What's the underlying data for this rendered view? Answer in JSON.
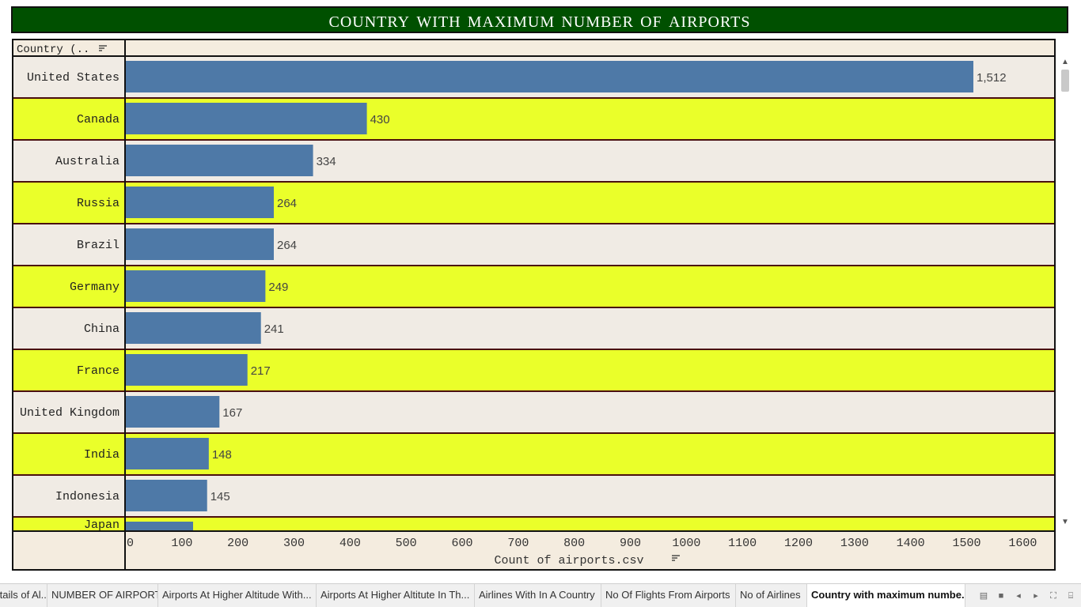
{
  "title": "Country with maximum number of airports",
  "chart_data": {
    "type": "bar",
    "orientation": "horizontal",
    "categories": [
      "United States",
      "Canada",
      "Australia",
      "Russia",
      "Brazil",
      "Germany",
      "China",
      "France",
      "United Kingdom",
      "India",
      "Indonesia",
      "Japan"
    ],
    "values": [
      1512,
      430,
      334,
      264,
      264,
      249,
      241,
      217,
      167,
      148,
      145,
      120
    ],
    "data_labels": [
      "1,512",
      "430",
      "334",
      "264",
      "264",
      "249",
      "241",
      "217",
      "167",
      "148",
      "145",
      ""
    ],
    "row_header": "Country (..",
    "xlabel": "Count of airports.csv",
    "xlim": [
      0,
      1650
    ],
    "xticks": [
      0,
      100,
      200,
      300,
      400,
      500,
      600,
      700,
      800,
      900,
      1000,
      1100,
      1200,
      1300,
      1400,
      1500,
      1600
    ],
    "colors": {
      "bar": "#4e79a7",
      "row_even": "#f0ebe4",
      "row_odd": "#eaff2a",
      "separator": "#4a0f0f",
      "header_bg": "#f4ecdf"
    }
  },
  "tabs": [
    {
      "label": "Details of Al...",
      "active": false
    },
    {
      "label": "NUMBER OF AIRPORT",
      "active": false
    },
    {
      "label": "Airports At Higher Altitude  With...",
      "active": false
    },
    {
      "label": "Airports At Higher Altitute In Th...",
      "active": false
    },
    {
      "label": "Airlines With In A Country",
      "active": false
    },
    {
      "label": "No Of Flights From Airports",
      "active": false
    },
    {
      "label": "No of Airlines",
      "active": false
    },
    {
      "label": "Country with maximum numbe...",
      "active": true
    }
  ],
  "controls": [
    "grid-view-icon",
    "single-view-icon",
    "prev-tab-icon",
    "next-tab-icon",
    "fullscreen-icon",
    "presentation-icon"
  ]
}
